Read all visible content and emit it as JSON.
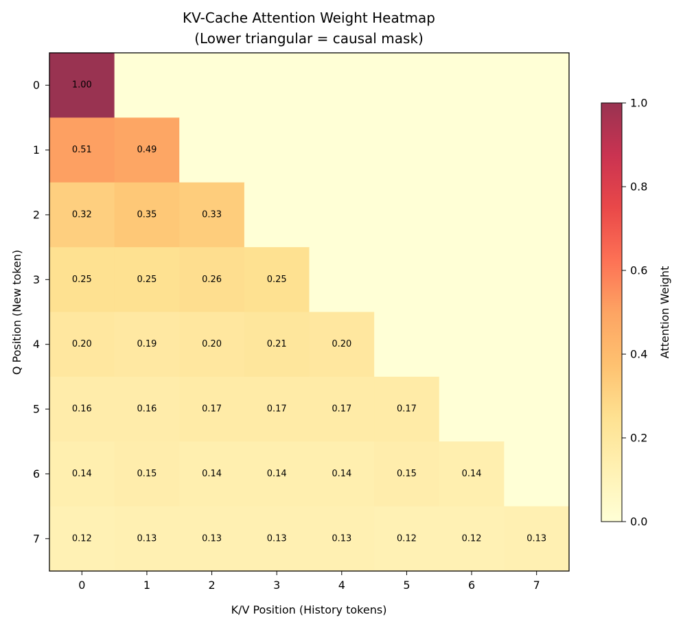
{
  "chart_data": {
    "type": "heatmap",
    "title": "KV-Cache Attention Weight Heatmap",
    "subtitle": "(Lower triangular = causal mask)",
    "xlabel": "K/V Position (History tokens)",
    "ylabel": "Q Position (New token)",
    "x_categories": [
      "0",
      "1",
      "2",
      "3",
      "4",
      "5",
      "6",
      "7"
    ],
    "y_categories": [
      "0",
      "1",
      "2",
      "3",
      "4",
      "5",
      "6",
      "7"
    ],
    "values": [
      [
        1.0,
        0,
        0,
        0,
        0,
        0,
        0,
        0
      ],
      [
        0.51,
        0.49,
        0,
        0,
        0,
        0,
        0,
        0
      ],
      [
        0.32,
        0.35,
        0.33,
        0,
        0,
        0,
        0,
        0
      ],
      [
        0.25,
        0.25,
        0.26,
        0.25,
        0,
        0,
        0,
        0
      ],
      [
        0.2,
        0.19,
        0.2,
        0.21,
        0.2,
        0,
        0,
        0
      ],
      [
        0.16,
        0.16,
        0.17,
        0.17,
        0.17,
        0.17,
        0,
        0
      ],
      [
        0.14,
        0.15,
        0.14,
        0.14,
        0.14,
        0.15,
        0.14,
        0
      ],
      [
        0.12,
        0.13,
        0.13,
        0.13,
        0.13,
        0.12,
        0.12,
        0.13
      ]
    ],
    "labels": [
      [
        "1.00"
      ],
      [
        "0.51",
        "0.49"
      ],
      [
        "0.32",
        "0.35",
        "0.33"
      ],
      [
        "0.25",
        "0.25",
        "0.26",
        "0.25"
      ],
      [
        "0.20",
        "0.19",
        "0.20",
        "0.21",
        "0.20"
      ],
      [
        "0.16",
        "0.16",
        "0.17",
        "0.17",
        "0.17",
        "0.17"
      ],
      [
        "0.14",
        "0.15",
        "0.14",
        "0.14",
        "0.14",
        "0.15",
        "0.14"
      ],
      [
        "0.12",
        "0.13",
        "0.13",
        "0.13",
        "0.13",
        "0.12",
        "0.12",
        "0.13"
      ]
    ],
    "colorbar": {
      "label": "Attention Weight",
      "range": [
        0,
        1
      ],
      "ticks": [
        "0.0",
        "0.2",
        "0.4",
        "0.6",
        "0.8",
        "1.0"
      ],
      "colormap": "YlOrRd",
      "colormap_stops": [
        "#ffffcc",
        "#ffeda0",
        "#fed976",
        "#feb24c",
        "#fd8d3c",
        "#fc4e2a",
        "#e31a1c",
        "#bd0026",
        "#800026"
      ]
    },
    "cell_alpha": 0.8,
    "grid": false
  }
}
